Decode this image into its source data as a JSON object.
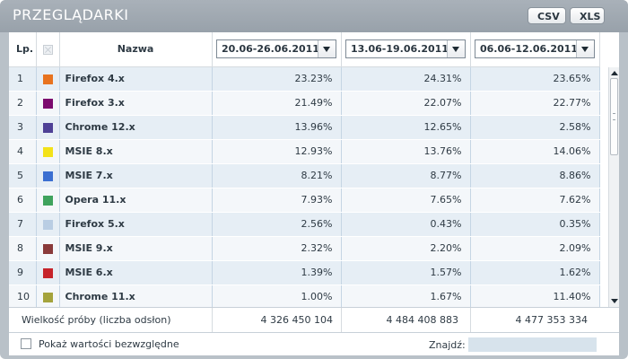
{
  "header": {
    "title": "PRZEGLĄDARKI",
    "csv_label": "CSV",
    "xls_label": "XLS"
  },
  "columns": {
    "lp": "Lp.",
    "name": "Nazwa",
    "periods": [
      "20.06-26.06.2011",
      "13.06-19.06.2011",
      "06.06-12.06.2011"
    ]
  },
  "rows": [
    {
      "lp": "1",
      "name": "Firefox 4.x",
      "color": "#e8731f",
      "v": [
        "23.23%",
        "24.31%",
        "23.65%"
      ]
    },
    {
      "lp": "2",
      "name": "Firefox 3.x",
      "color": "#7c0a6e",
      "v": [
        "21.49%",
        "22.07%",
        "22.77%"
      ]
    },
    {
      "lp": "3",
      "name": "Chrome 12.x",
      "color": "#4f4196",
      "v": [
        "13.96%",
        "12.65%",
        "2.58%"
      ]
    },
    {
      "lp": "4",
      "name": "MSIE 8.x",
      "color": "#f3e219",
      "v": [
        "12.93%",
        "13.76%",
        "14.06%"
      ]
    },
    {
      "lp": "5",
      "name": "MSIE 7.x",
      "color": "#3b6fd1",
      "v": [
        "8.21%",
        "8.77%",
        "8.86%"
      ]
    },
    {
      "lp": "6",
      "name": "Opera 11.x",
      "color": "#3fa35d",
      "v": [
        "7.93%",
        "7.65%",
        "7.62%"
      ]
    },
    {
      "lp": "7",
      "name": "Firefox 5.x",
      "color": "#b9cde3",
      "v": [
        "2.56%",
        "0.43%",
        "0.35%"
      ]
    },
    {
      "lp": "8",
      "name": "MSIE 9.x",
      "color": "#8a3a3a",
      "v": [
        "2.32%",
        "2.20%",
        "2.09%"
      ]
    },
    {
      "lp": "9",
      "name": "MSIE 6.x",
      "color": "#c6242b",
      "v": [
        "1.39%",
        "1.57%",
        "1.62%"
      ]
    },
    {
      "lp": "10",
      "name": "Chrome 11.x",
      "color": "#a4a33c",
      "v": [
        "1.00%",
        "1.67%",
        "11.40%"
      ]
    }
  ],
  "footer": {
    "label": "Wielkość próby (liczba odsłon)",
    "values": [
      "4 326 450 104",
      "4 484 408 883",
      "4 477 353 334"
    ]
  },
  "bottom": {
    "absolute_label": "Pokaż wartości bezwzględne",
    "find_label": "Znajdź:",
    "find_value": ""
  },
  "icons": {
    "select_all": "checkbox-x-icon",
    "dropdown": "chevron-down-icon",
    "scroll_up": "arrow-up-icon",
    "scroll_down": "arrow-down-icon"
  }
}
